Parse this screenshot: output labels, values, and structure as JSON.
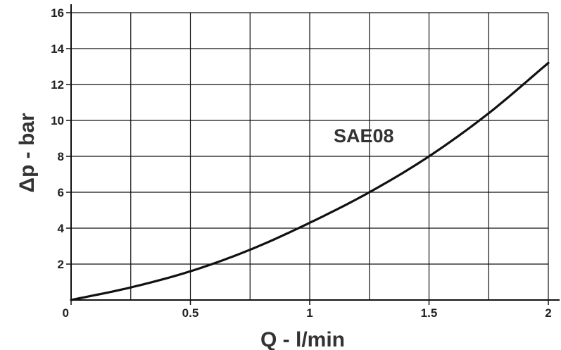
{
  "chart_data": {
    "type": "line",
    "title": "",
    "xlabel": "Q - l/min",
    "ylabel": "Δp - bar",
    "xlim": [
      0,
      2
    ],
    "ylim": [
      0,
      16
    ],
    "x_ticks": [
      0,
      0.5,
      1,
      1.5,
      2
    ],
    "x_tick_labels": [
      "0",
      "0.5",
      "1",
      "1.5",
      "2"
    ],
    "y_ticks": [
      2,
      4,
      6,
      8,
      10,
      12,
      14,
      16
    ],
    "y_tick_labels": [
      "2",
      "4",
      "6",
      "8",
      "10",
      "12",
      "14",
      "16"
    ],
    "grid": true,
    "series": [
      {
        "name": "SAE08",
        "x": [
          0,
          0.25,
          0.5,
          0.75,
          1.0,
          1.25,
          1.5,
          1.75,
          2.0
        ],
        "y": [
          0,
          0.7,
          1.6,
          2.8,
          4.3,
          6.0,
          8.0,
          10.4,
          13.2
        ],
        "color": "#111111"
      }
    ]
  }
}
